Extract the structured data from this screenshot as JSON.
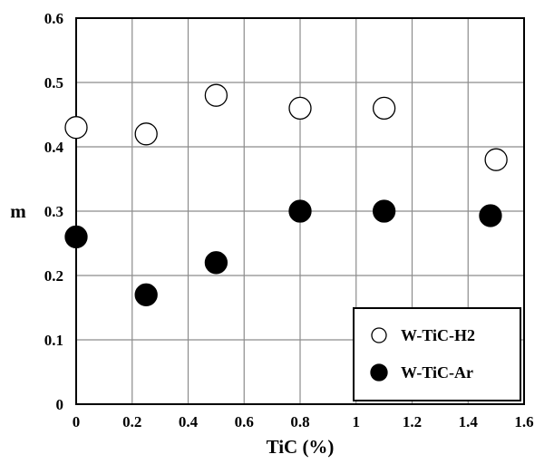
{
  "chart_data": {
    "type": "scatter",
    "xlabel": "TiC (%)",
    "ylabel": "m",
    "xlim": [
      0,
      1.6
    ],
    "ylim": [
      0,
      0.6
    ],
    "x_ticks": [
      "0",
      "0.2",
      "0.4",
      "0.6",
      "0.8",
      "1",
      "1.2",
      "1.4",
      "1.6"
    ],
    "y_ticks": [
      "0",
      "0.1",
      "0.2",
      "0.3",
      "0.4",
      "0.5",
      "0.6"
    ],
    "grid": true,
    "legend_position": "bottom-right",
    "series": [
      {
        "name": "W-TiC-H2",
        "marker": "open-circle",
        "points": [
          {
            "x": 0,
            "y": 0.43
          },
          {
            "x": 0.25,
            "y": 0.42
          },
          {
            "x": 0.5,
            "y": 0.48
          },
          {
            "x": 0.8,
            "y": 0.46
          },
          {
            "x": 1.1,
            "y": 0.46
          },
          {
            "x": 1.5,
            "y": 0.38
          }
        ]
      },
      {
        "name": "W-TiC-Ar",
        "marker": "filled-circle",
        "points": [
          {
            "x": 0,
            "y": 0.26
          },
          {
            "x": 0.25,
            "y": 0.17
          },
          {
            "x": 0.5,
            "y": 0.22
          },
          {
            "x": 0.8,
            "y": 0.3
          },
          {
            "x": 1.1,
            "y": 0.3
          },
          {
            "x": 1.48,
            "y": 0.293
          }
        ]
      }
    ]
  }
}
